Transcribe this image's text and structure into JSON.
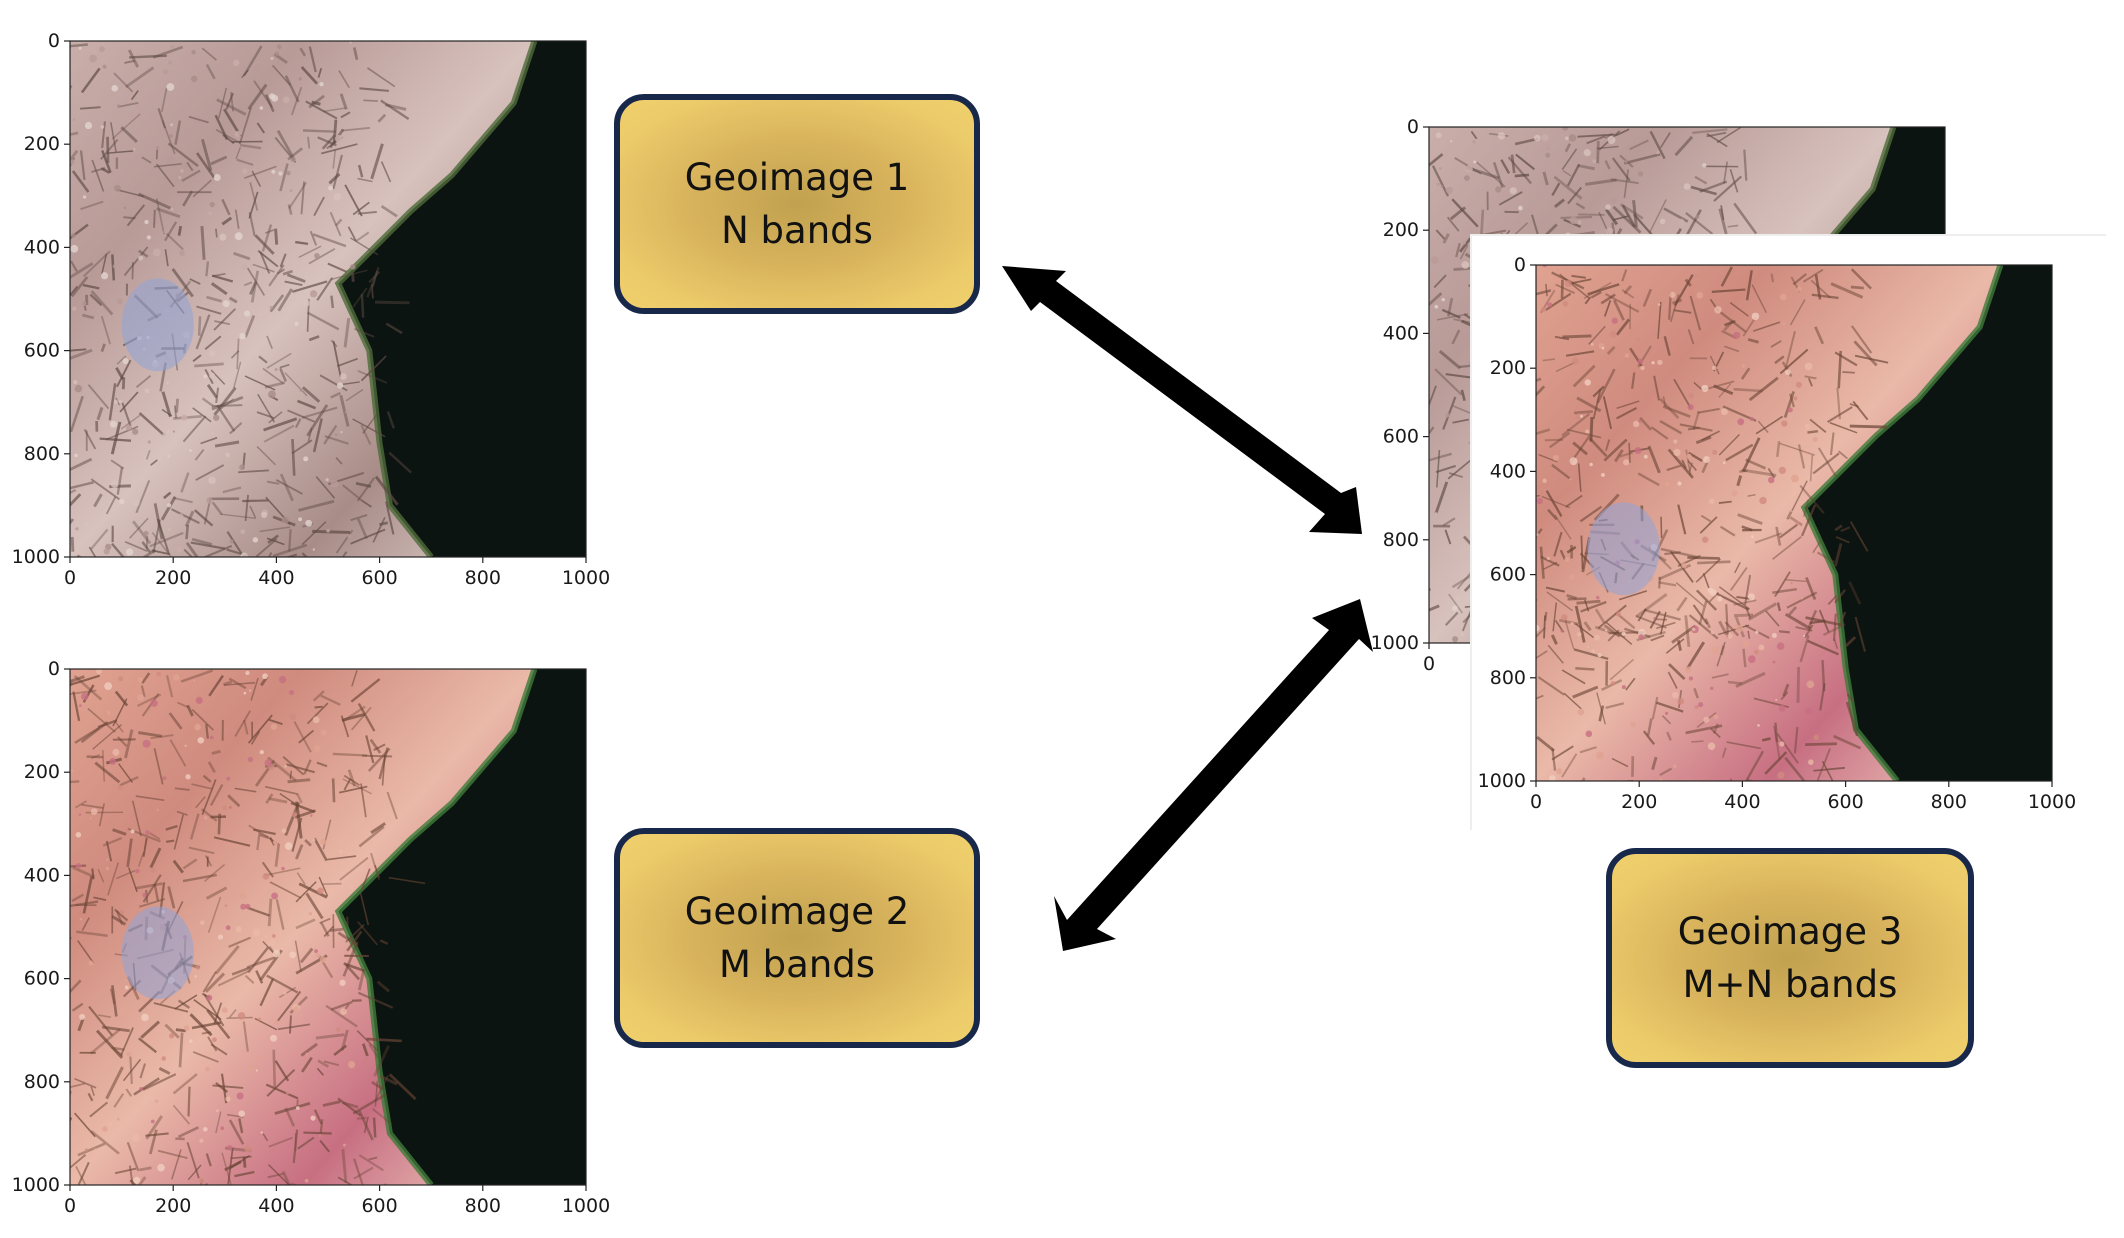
{
  "panels": [
    {
      "id": "geoimage-1-plot",
      "x_ticks": [
        "0",
        "200",
        "400",
        "600",
        "800",
        "1000"
      ],
      "y_ticks": [
        "0",
        "200",
        "400",
        "600",
        "800",
        "1000"
      ],
      "palette": "muted"
    },
    {
      "id": "geoimage-2-plot",
      "x_ticks": [
        "0",
        "200",
        "400",
        "600",
        "800",
        "1000"
      ],
      "y_ticks": [
        "0",
        "200",
        "400",
        "600",
        "800",
        "1000"
      ],
      "palette": "pink"
    },
    {
      "id": "geoimage-3-back-plot",
      "x_ticks": [
        "0"
      ],
      "y_ticks": [
        "0",
        "200",
        "400",
        "600",
        "800",
        "1000"
      ],
      "palette": "muted"
    },
    {
      "id": "geoimage-3-front-plot",
      "x_ticks": [
        "0",
        "200",
        "400",
        "600",
        "800",
        "1000"
      ],
      "y_ticks": [
        "0",
        "200",
        "400",
        "600",
        "800",
        "1000"
      ],
      "palette": "pink"
    }
  ],
  "boxes": {
    "geoimage1": {
      "line1": "Geoimage 1",
      "line2": "N bands"
    },
    "geoimage2": {
      "line1": "Geoimage 2",
      "line2": "M bands"
    },
    "geoimage3": {
      "line1": "Geoimage 3",
      "line2": "M+N bands"
    }
  },
  "colors": {
    "box_border": "#17284a",
    "box_fill": "#e6c264",
    "arrow": "#000000",
    "water": "#0b1410"
  }
}
